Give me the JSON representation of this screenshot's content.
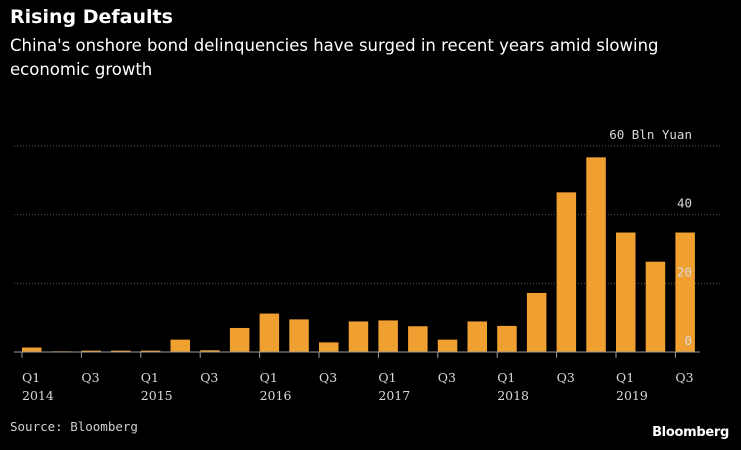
{
  "colors": {
    "background": "#000000",
    "bar": "#f0a030",
    "text": "#ffffff"
  },
  "header": {
    "title": "Rising Defaults",
    "subtitle": "China's onshore bond delinquencies have surged in recent years amid slowing economic growth"
  },
  "footer": {
    "source": "Source: Bloomberg",
    "brand": "Bloomberg"
  },
  "chart_data": {
    "type": "bar",
    "title": "Rising Defaults",
    "subtitle": "China's onshore bond delinquencies have surged in recent years amid slowing economic growth",
    "ylabel": "60 Bln Yuan",
    "y_unit": "Bln Yuan",
    "ylim": [
      0,
      60
    ],
    "yticks": [
      0,
      20,
      40,
      60
    ],
    "grid": true,
    "y_axis_side": "right",
    "categories": [
      "Q1 2014",
      "Q2 2014",
      "Q3 2014",
      "Q4 2014",
      "Q1 2015",
      "Q2 2015",
      "Q3 2015",
      "Q4 2015",
      "Q1 2016",
      "Q2 2016",
      "Q3 2016",
      "Q4 2016",
      "Q1 2017",
      "Q2 2017",
      "Q3 2017",
      "Q4 2017",
      "Q1 2018",
      "Q2 2018",
      "Q3 2018",
      "Q4 2018",
      "Q1 2019",
      "Q2 2019",
      "Q3 2019"
    ],
    "values": [
      1.3,
      0.2,
      0.4,
      0.4,
      0.4,
      3.6,
      0.5,
      7.0,
      11.2,
      9.5,
      2.8,
      8.9,
      9.2,
      7.5,
      3.6,
      8.9,
      7.6,
      17.2,
      46.5,
      56.7,
      34.8,
      26.3,
      34.8
    ],
    "xtick_labels": [
      {
        "index": 0,
        "quarter": "Q1",
        "year": "2014"
      },
      {
        "index": 2,
        "quarter": "Q3",
        "year": ""
      },
      {
        "index": 4,
        "quarter": "Q1",
        "year": "2015"
      },
      {
        "index": 6,
        "quarter": "Q3",
        "year": ""
      },
      {
        "index": 8,
        "quarter": "Q1",
        "year": "2016"
      },
      {
        "index": 10,
        "quarter": "Q3",
        "year": ""
      },
      {
        "index": 12,
        "quarter": "Q1",
        "year": "2017"
      },
      {
        "index": 14,
        "quarter": "Q3",
        "year": ""
      },
      {
        "index": 16,
        "quarter": "Q1",
        "year": "2018"
      },
      {
        "index": 18,
        "quarter": "Q3",
        "year": ""
      },
      {
        "index": 20,
        "quarter": "Q1",
        "year": "2019"
      },
      {
        "index": 22,
        "quarter": "Q3",
        "year": ""
      }
    ]
  }
}
